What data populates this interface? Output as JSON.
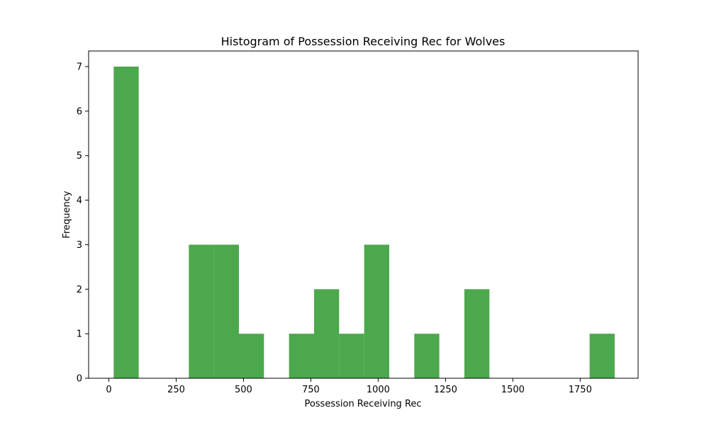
{
  "chart_data": {
    "type": "bar",
    "title": "Histogram of Possession Receiving Rec for Wolves",
    "xlabel": "Possession Receiving Rec",
    "ylabel": "Frequency",
    "bar_color": "#4ca84c",
    "xlim": [
      -75,
      1965
    ],
    "ylim": [
      0,
      7.35
    ],
    "x_ticks": [
      0,
      250,
      500,
      750,
      1000,
      1250,
      1500,
      1750
    ],
    "x_tick_labels": [
      "0",
      "250",
      "500",
      "750",
      "1000",
      "1250",
      "1500",
      "1750"
    ],
    "y_ticks": [
      0,
      1,
      2,
      3,
      4,
      5,
      6,
      7
    ],
    "y_tick_labels": [
      "0",
      "1",
      "2",
      "3",
      "4",
      "5",
      "6",
      "7"
    ],
    "bin_edges": [
      18,
      111,
      204,
      297,
      390,
      483,
      576,
      669,
      762,
      855,
      948,
      1041,
      1134,
      1227,
      1320,
      1413,
      1506,
      1599,
      1692,
      1785,
      1878
    ],
    "values": [
      7,
      0,
      0,
      3,
      3,
      1,
      0,
      1,
      2,
      1,
      3,
      0,
      1,
      0,
      2,
      0,
      0,
      0,
      0,
      1
    ],
    "grid": false,
    "legend": "none"
  }
}
